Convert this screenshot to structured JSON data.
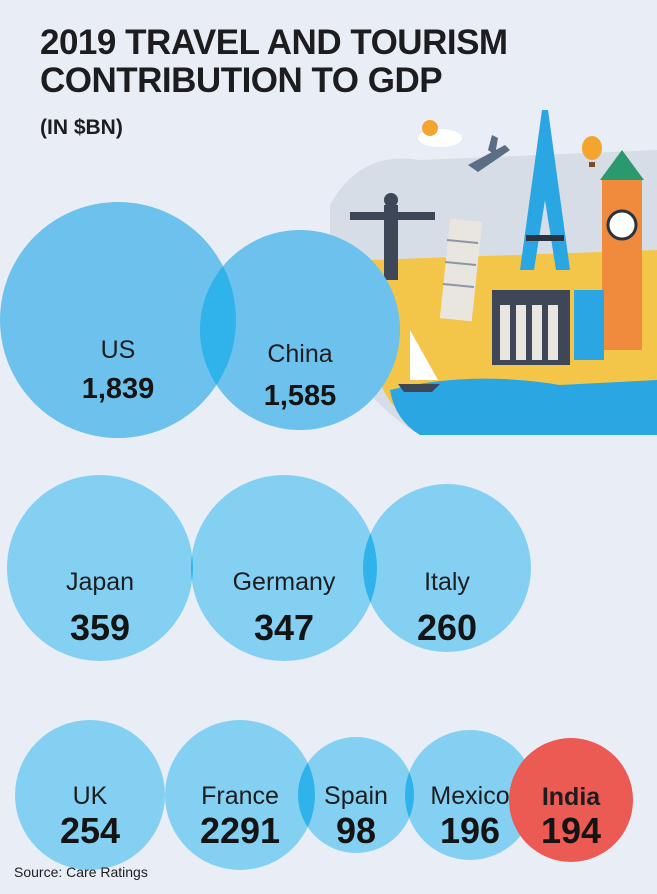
{
  "header": {
    "title_line1": "2019 TRAVEL AND TOURISM",
    "title_line2": "CONTRIBUTION TO GDP",
    "subtitle": "(IN $BN)"
  },
  "footer": {
    "source": "Source: Care Ratings"
  },
  "colors": {
    "bubble": "#84d0f3",
    "bubble_large": "#6cc2ec",
    "bubble_overlap": "#2fb3ea",
    "highlight": "#ec5b53",
    "background": "#e9eef6"
  },
  "chart_data": {
    "type": "bubble",
    "unit": "$BN",
    "categories": [
      "US",
      "China",
      "Japan",
      "Germany",
      "Italy",
      "UK",
      "France",
      "Spain",
      "Mexico",
      "India"
    ],
    "values": [
      "1,839",
      "1,585",
      "359",
      "347",
      "260",
      "254",
      "2291",
      "98",
      "196",
      "194"
    ],
    "highlighted": "India"
  }
}
